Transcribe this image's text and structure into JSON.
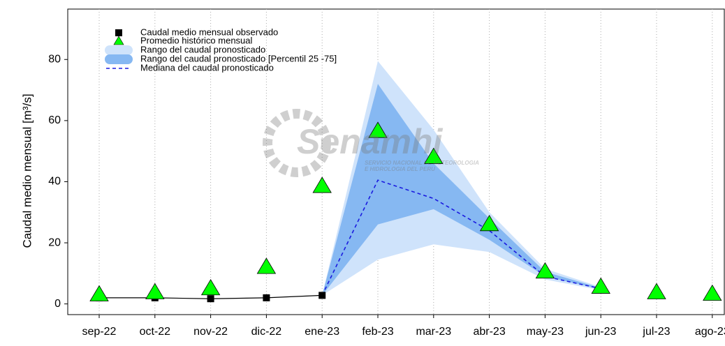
{
  "chart_data": {
    "type": "line",
    "y_label": "Caudal medio mensual  [m³/s]",
    "watermark": {
      "name": "Senamhi",
      "line1": "SERVICIO NACIONAL DE METEOROLOGIA",
      "line2": "E HIDROLOGIA DEL PERU"
    },
    "categories": [
      "sep-22",
      "oct-22",
      "nov-22",
      "dic-22",
      "ene-23",
      "feb-23",
      "mar-23",
      "abr-23",
      "may-23",
      "jun-23",
      "jul-23",
      "ago-23"
    ],
    "ylim": [
      -3.5,
      96.5
    ],
    "yticks": [
      0,
      20,
      40,
      60,
      80
    ],
    "grid": true,
    "legend": "top-left",
    "series": [
      {
        "name": "Caudal medio mensual observado",
        "kind": "square",
        "color": "#000000",
        "values": [
          2.0,
          2.0,
          1.7,
          2.0,
          2.8,
          null,
          null,
          null,
          null,
          null,
          null,
          null
        ]
      },
      {
        "name": "Promedio histórico mensual",
        "kind": "triangle",
        "color": "#00ff00",
        "values": [
          3.0,
          3.7,
          5.0,
          12.0,
          38.5,
          56.5,
          48.0,
          26.0,
          10.5,
          5.5,
          3.7,
          3.2
        ]
      },
      {
        "name": "Rango del caudal pronosticado",
        "kind": "band",
        "color": "#cfe3fb",
        "low": [
          null,
          null,
          null,
          null,
          2.8,
          14.5,
          19.5,
          17.0,
          8.0,
          4.5,
          null,
          null
        ],
        "high": [
          null,
          null,
          null,
          null,
          2.8,
          79.5,
          57.0,
          30.0,
          11.5,
          5.5,
          null,
          null
        ]
      },
      {
        "name": "Rango del caudal pronosticado [Percentil 25 -75]",
        "kind": "band",
        "color": "#86b8f2",
        "low": [
          null,
          null,
          null,
          null,
          2.8,
          26.0,
          31.0,
          21.0,
          9.0,
          4.8,
          null,
          null
        ],
        "high": [
          null,
          null,
          null,
          null,
          2.8,
          72.0,
          46.0,
          28.0,
          10.5,
          5.2,
          null,
          null
        ]
      },
      {
        "name": "Mediana del caudal pronosticado",
        "kind": "dashed",
        "color": "#1a1adf",
        "values": [
          null,
          null,
          null,
          null,
          2.8,
          40.5,
          34.5,
          24.0,
          9.0,
          5.0,
          null,
          null
        ]
      }
    ]
  }
}
